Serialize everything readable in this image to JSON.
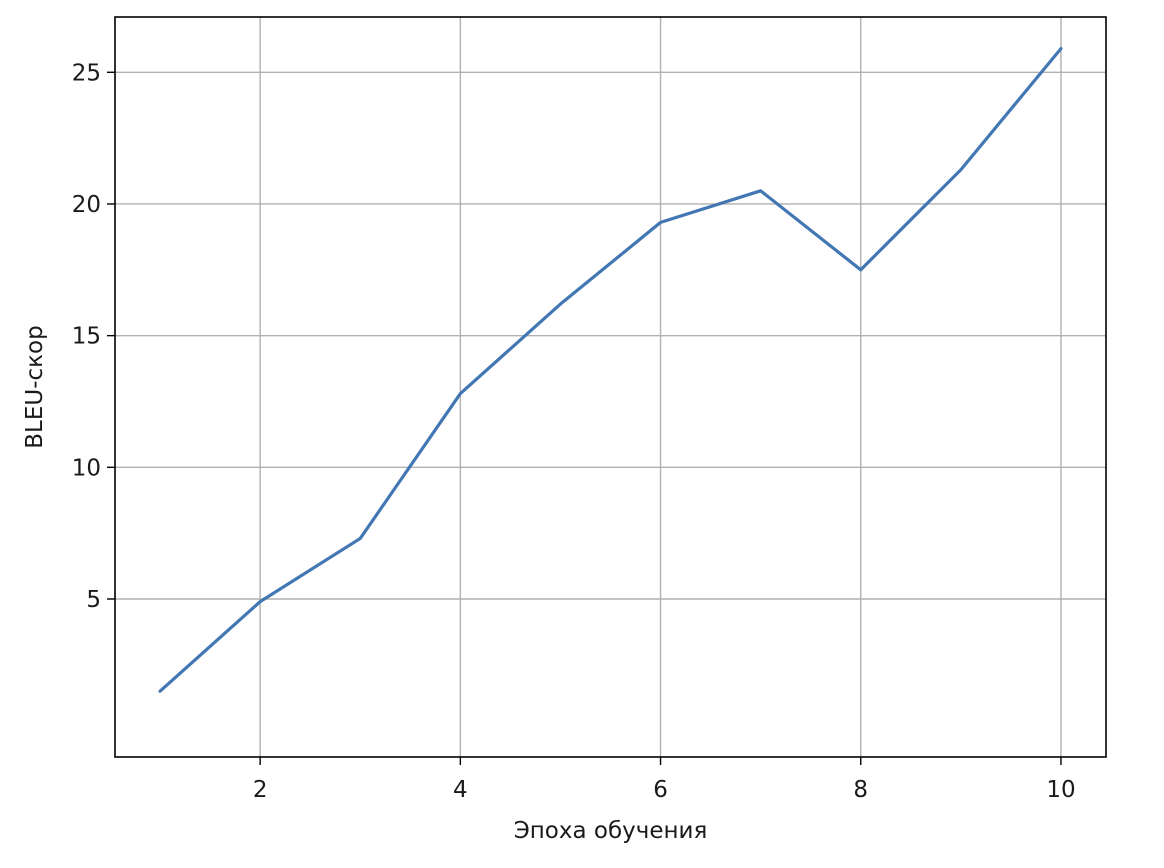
{
  "chart_data": {
    "type": "line",
    "title": "",
    "xlabel": "Эпоха обучения",
    "ylabel": "BLEU-скор",
    "x": [
      1,
      2,
      3,
      4,
      5,
      6,
      7,
      8,
      9,
      10
    ],
    "series": [
      {
        "values": [
          1.5,
          4.9,
          7.3,
          12.8,
          16.2,
          19.3,
          20.5,
          17.5,
          21.3,
          25.9
        ],
        "color": "#4277b4"
      }
    ],
    "xlim": [
      0.55,
      10.45
    ],
    "ylim": [
      -1.0,
      27.1
    ],
    "xticks": [
      2,
      4,
      6,
      8,
      10
    ],
    "yticks": [
      5,
      10,
      15,
      20,
      25
    ],
    "grid": true,
    "legend": "none"
  }
}
